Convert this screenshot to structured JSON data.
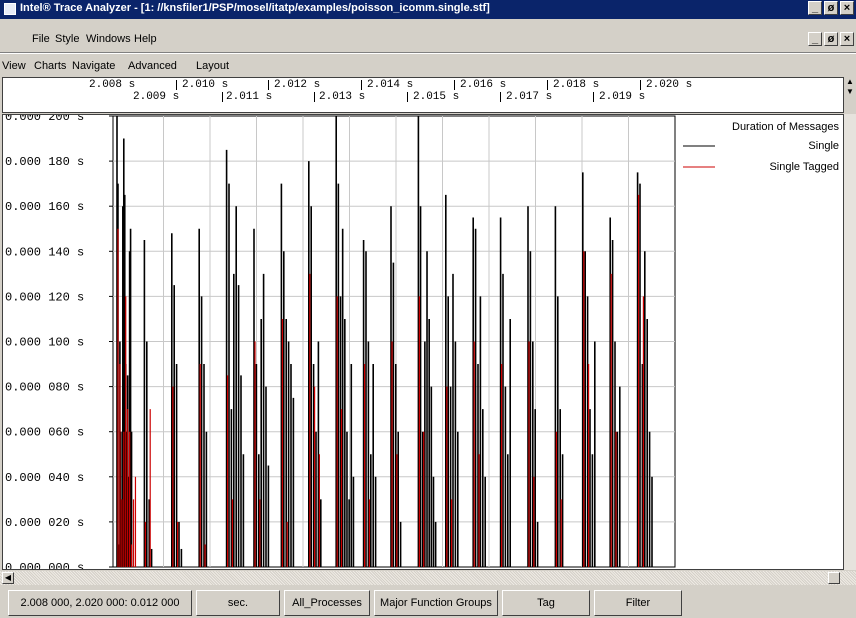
{
  "window": {
    "title": "Intel® Trace Analyzer - [1: //knsfiler1/PSP/mosel/itatp/examples/poisson_icomm.single.stf]",
    "minimize": "_",
    "restore": "ø",
    "close": "×"
  },
  "menu": [
    "File",
    "Style",
    "Windows",
    "Help"
  ],
  "view_menu": [
    "View",
    "Charts",
    "Navigate",
    "Advanced",
    "Layout"
  ],
  "timeline": {
    "top_ticks": [
      "2.008 s",
      "2.010 s",
      "2.012 s",
      "2.014 s",
      "2.016 s",
      "2.018 s",
      "2.020 s"
    ],
    "bottom_ticks": [
      "2.009 s",
      "2.011 s",
      "2.013 s",
      "2.015 s",
      "2.017 s",
      "2.019 s"
    ]
  },
  "chart_data": {
    "type": "bar",
    "title": "",
    "ylabel": "",
    "xlabel": "",
    "ylim": [
      0,
      0.2
    ],
    "y_ticks": [
      "0.000 000 s",
      "0.000 020 s",
      "0.000 040 s",
      "0.000 060 s",
      "0.000 080 s",
      "0.000 100 s",
      "0.000 120 s",
      "0.000 140 s",
      "0.000 160 s",
      "0.000 180 s",
      "0.000 200 s"
    ],
    "legend_title": "Duration of Messages",
    "legend_position": "top-right",
    "grid": true,
    "series": [
      {
        "name": "Single",
        "color": "#000000"
      },
      {
        "name": "Single Tagged",
        "color": "#cc0000"
      }
    ],
    "bursts": [
      {
        "Single": [
          0.2,
          0.17,
          0.01,
          0.1,
          0.06,
          0.008,
          0.16,
          0.19,
          0.165,
          0.09,
          0.06,
          0.085,
          0.04,
          0.14,
          0.15,
          0.06
        ],
        "Single Tagged": [
          0.15,
          0.09,
          0.03,
          0.06,
          0.12,
          0.07,
          0.06,
          0.01,
          0.03,
          0.04
        ]
      },
      {
        "Single": [
          0.145,
          0.1,
          0.03,
          0.008
        ],
        "Single Tagged": [
          0.02,
          0.07
        ]
      },
      {
        "Single": [
          0.148,
          0.125,
          0.09,
          0.02,
          0.008
        ],
        "Single Tagged": [
          0.08,
          0.02
        ]
      },
      {
        "Single": [
          0.15,
          0.12,
          0.09,
          0.06
        ],
        "Single Tagged": [
          0.09,
          0.01
        ]
      },
      {
        "Single": [
          0.185,
          0.17,
          0.07,
          0.13,
          0.16,
          0.125,
          0.085,
          0.05
        ],
        "Single Tagged": [
          0.085,
          0.03
        ]
      },
      {
        "Single": [
          0.15,
          0.09,
          0.05,
          0.11,
          0.13,
          0.08,
          0.045
        ],
        "Single Tagged": [
          0.1,
          0.03
        ]
      },
      {
        "Single": [
          0.17,
          0.14,
          0.11,
          0.1,
          0.09,
          0.075
        ],
        "Single Tagged": [
          0.11,
          0.02
        ]
      },
      {
        "Single": [
          0.18,
          0.16,
          0.09,
          0.06,
          0.1,
          0.03
        ],
        "Single Tagged": [
          0.13,
          0.08,
          0.05
        ]
      },
      {
        "Single": [
          0.2,
          0.17,
          0.12,
          0.15,
          0.11,
          0.06,
          0.03,
          0.09,
          0.04
        ],
        "Single Tagged": [
          0.12,
          0.07
        ]
      },
      {
        "Single": [
          0.145,
          0.14,
          0.1,
          0.05,
          0.09,
          0.04
        ],
        "Single Tagged": [
          0.09,
          0.03
        ]
      },
      {
        "Single": [
          0.16,
          0.135,
          0.09,
          0.06,
          0.02
        ],
        "Single Tagged": [
          0.1,
          0.05
        ]
      },
      {
        "Single": [
          0.2,
          0.16,
          0.06,
          0.1,
          0.14,
          0.11,
          0.08,
          0.04,
          0.02
        ],
        "Single Tagged": [
          0.12,
          0.06
        ]
      },
      {
        "Single": [
          0.165,
          0.12,
          0.08,
          0.13,
          0.1,
          0.06
        ],
        "Single Tagged": [
          0.08,
          0.03
        ]
      },
      {
        "Single": [
          0.155,
          0.15,
          0.09,
          0.12,
          0.07,
          0.04
        ],
        "Single Tagged": [
          0.1,
          0.05
        ]
      },
      {
        "Single": [
          0.155,
          0.13,
          0.08,
          0.05,
          0.11
        ],
        "Single Tagged": [
          0.09
        ]
      },
      {
        "Single": [
          0.16,
          0.14,
          0.1,
          0.07,
          0.02
        ],
        "Single Tagged": [
          0.1,
          0.04
        ]
      },
      {
        "Single": [
          0.16,
          0.12,
          0.07,
          0.05
        ],
        "Single Tagged": [
          0.06,
          0.03
        ]
      },
      {
        "Single": [
          0.175,
          0.14,
          0.12,
          0.07,
          0.05,
          0.1
        ],
        "Single Tagged": [
          0.14,
          0.09
        ]
      },
      {
        "Single": [
          0.155,
          0.145,
          0.1,
          0.06,
          0.08
        ],
        "Single Tagged": [
          0.13,
          0.06
        ]
      },
      {
        "Single": [
          0.175,
          0.17,
          0.09,
          0.14,
          0.11,
          0.06,
          0.04
        ],
        "Single Tagged": [
          0.165,
          0.12
        ]
      }
    ]
  },
  "status": {
    "range": "2.008 000, 2.020 000: 0.012 000",
    "unit": "sec.",
    "processes": "All_Processes",
    "groups": "Major Function Groups",
    "tag": "Tag",
    "filter": "Filter"
  }
}
